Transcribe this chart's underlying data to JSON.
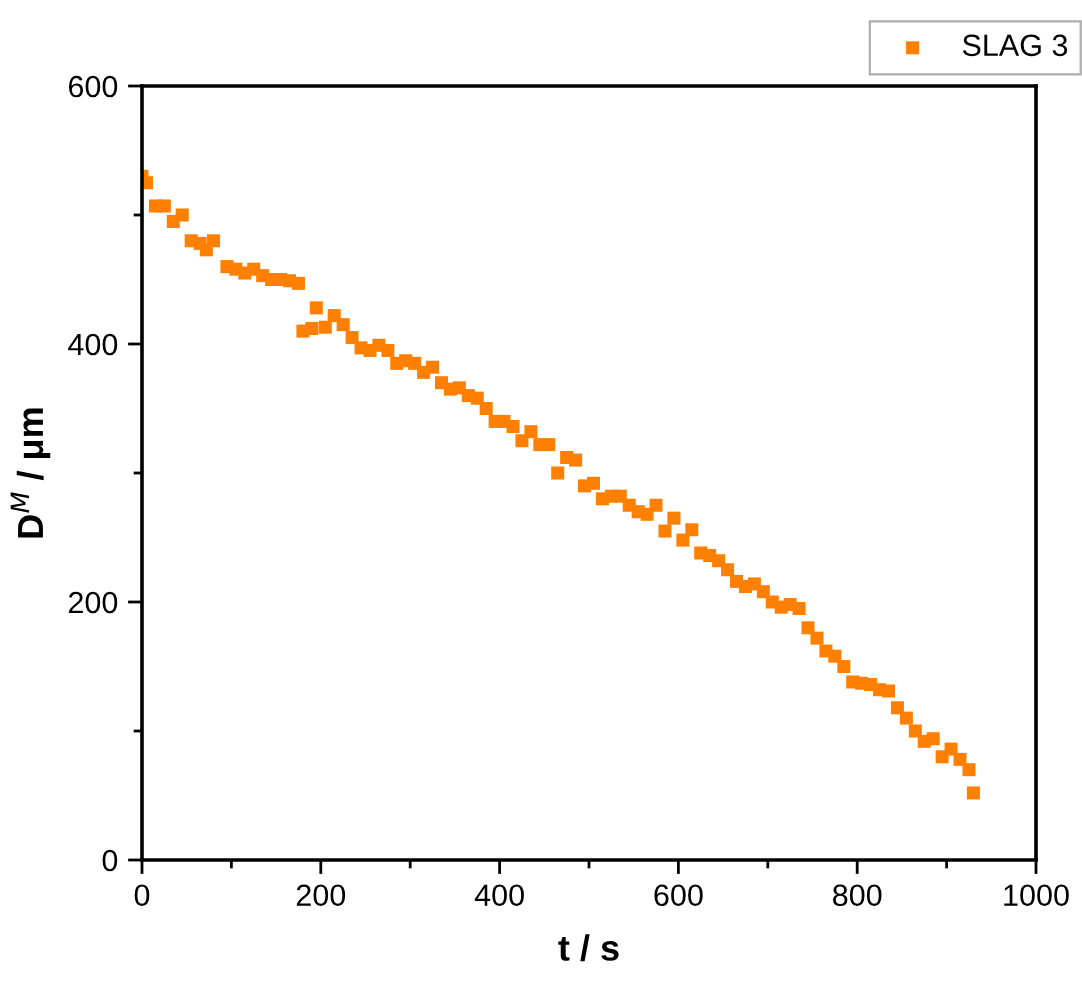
{
  "chart_data": {
    "type": "scatter",
    "xlabel": "t / s",
    "ylabel": "D$^{M}$ / μm",
    "xlim": [
      0,
      1000
    ],
    "xticks": [
      0,
      200,
      400,
      600,
      800,
      1000
    ],
    "ylim": [
      0,
      600
    ],
    "yticks": [
      0,
      200,
      400,
      600
    ],
    "grid": false,
    "legend": "top right",
    "marker": "square",
    "series": [
      {
        "name": "SLAG 3",
        "color": "#ff8000",
        "x": [
          0,
          5,
          15,
          25,
          35,
          45,
          55,
          65,
          72,
          80,
          95,
          105,
          115,
          125,
          135,
          145,
          155,
          165,
          175,
          180,
          190,
          195,
          205,
          215,
          225,
          235,
          245,
          255,
          265,
          275,
          285,
          295,
          305,
          315,
          325,
          335,
          345,
          355,
          365,
          375,
          385,
          395,
          405,
          415,
          425,
          435,
          445,
          455,
          465,
          475,
          485,
          495,
          505,
          515,
          525,
          535,
          545,
          555,
          565,
          575,
          585,
          595,
          605,
          615,
          625,
          635,
          645,
          655,
          665,
          675,
          685,
          695,
          705,
          715,
          725,
          735,
          745,
          755,
          765,
          775,
          785,
          795,
          805,
          815,
          825,
          835,
          845,
          855,
          865,
          875,
          885,
          895,
          905,
          915,
          925,
          930
        ],
        "values": [
          530,
          525,
          507,
          507,
          495,
          500,
          480,
          478,
          473,
          480,
          460,
          458,
          455,
          458,
          453,
          450,
          450,
          449,
          447,
          410,
          412,
          428,
          413,
          422,
          415,
          405,
          397,
          395,
          399,
          395,
          385,
          387,
          385,
          378,
          382,
          370,
          365,
          366,
          360,
          358,
          350,
          340,
          340,
          336,
          325,
          332,
          322,
          322,
          300,
          312,
          310,
          290,
          292,
          280,
          282,
          282,
          275,
          270,
          268,
          275,
          255,
          265,
          248,
          256,
          238,
          236,
          232,
          225,
          216,
          212,
          214,
          208,
          200,
          196,
          198,
          195,
          180,
          172,
          162,
          158,
          150,
          138,
          137,
          136,
          132,
          131,
          118,
          110,
          100,
          92,
          94,
          80,
          86,
          78,
          70,
          52
        ]
      }
    ]
  }
}
